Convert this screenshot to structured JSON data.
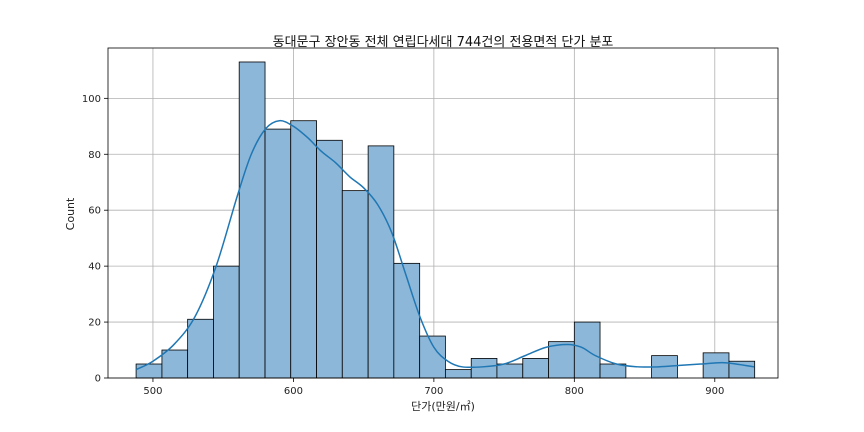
{
  "chart_data": {
    "type": "bar",
    "subtype": "histogram-with-kde",
    "title": "동대문구 장안동 전체 연립다세대 744건의 전용면적 단가 분포",
    "xlabel": "단가(만원/㎡)",
    "ylabel": "Count",
    "xlim": [
      468,
      945
    ],
    "ylim": [
      0,
      118
    ],
    "xticks": [
      500,
      600,
      700,
      800,
      900
    ],
    "yticks": [
      0,
      20,
      40,
      60,
      80,
      100
    ],
    "grid": true,
    "bar_color": "#8db7d8",
    "bar_edge_color": "#000000",
    "kde_color": "#1f77b4",
    "bins": [
      {
        "x0": 488.0,
        "x1": 506.4,
        "count": 5
      },
      {
        "x0": 506.4,
        "x1": 524.7,
        "count": 10
      },
      {
        "x0": 524.7,
        "x1": 543.1,
        "count": 21
      },
      {
        "x0": 543.1,
        "x1": 561.4,
        "count": 40
      },
      {
        "x0": 561.4,
        "x1": 579.8,
        "count": 113
      },
      {
        "x0": 579.8,
        "x1": 598.1,
        "count": 89
      },
      {
        "x0": 598.1,
        "x1": 616.5,
        "count": 92
      },
      {
        "x0": 616.5,
        "x1": 634.8,
        "count": 85
      },
      {
        "x0": 634.8,
        "x1": 653.2,
        "count": 67
      },
      {
        "x0": 653.2,
        "x1": 671.5,
        "count": 83
      },
      {
        "x0": 671.5,
        "x1": 689.9,
        "count": 41
      },
      {
        "x0": 689.9,
        "x1": 708.2,
        "count": 15
      },
      {
        "x0": 708.2,
        "x1": 726.6,
        "count": 3
      },
      {
        "x0": 726.6,
        "x1": 744.9,
        "count": 7
      },
      {
        "x0": 744.9,
        "x1": 763.3,
        "count": 5
      },
      {
        "x0": 763.3,
        "x1": 781.6,
        "count": 7
      },
      {
        "x0": 781.6,
        "x1": 800.0,
        "count": 13
      },
      {
        "x0": 800.0,
        "x1": 818.3,
        "count": 20
      },
      {
        "x0": 818.3,
        "x1": 836.7,
        "count": 5
      },
      {
        "x0": 836.7,
        "x1": 855.0,
        "count": 0
      },
      {
        "x0": 855.0,
        "x1": 873.4,
        "count": 8
      },
      {
        "x0": 873.4,
        "x1": 891.7,
        "count": 0
      },
      {
        "x0": 891.7,
        "x1": 910.1,
        "count": 9
      },
      {
        "x0": 910.1,
        "x1": 928.4,
        "count": 6
      }
    ],
    "kde": {
      "x": [
        488,
        500,
        515,
        530,
        545,
        560,
        570,
        580,
        590,
        600,
        610,
        620,
        630,
        640,
        650,
        660,
        670,
        680,
        690,
        700,
        710,
        720,
        735,
        750,
        765,
        780,
        795,
        805,
        815,
        830,
        845,
        860,
        875,
        890,
        905,
        915,
        928
      ],
      "y": [
        3,
        6,
        12,
        22,
        40,
        65,
        80,
        89,
        92,
        90,
        86,
        81,
        77,
        72,
        68,
        62,
        52,
        37,
        22,
        11,
        6,
        4,
        4,
        5,
        8,
        11,
        12,
        11,
        8,
        5,
        4,
        4,
        4.5,
        5,
        5.5,
        5,
        4
      ]
    }
  }
}
